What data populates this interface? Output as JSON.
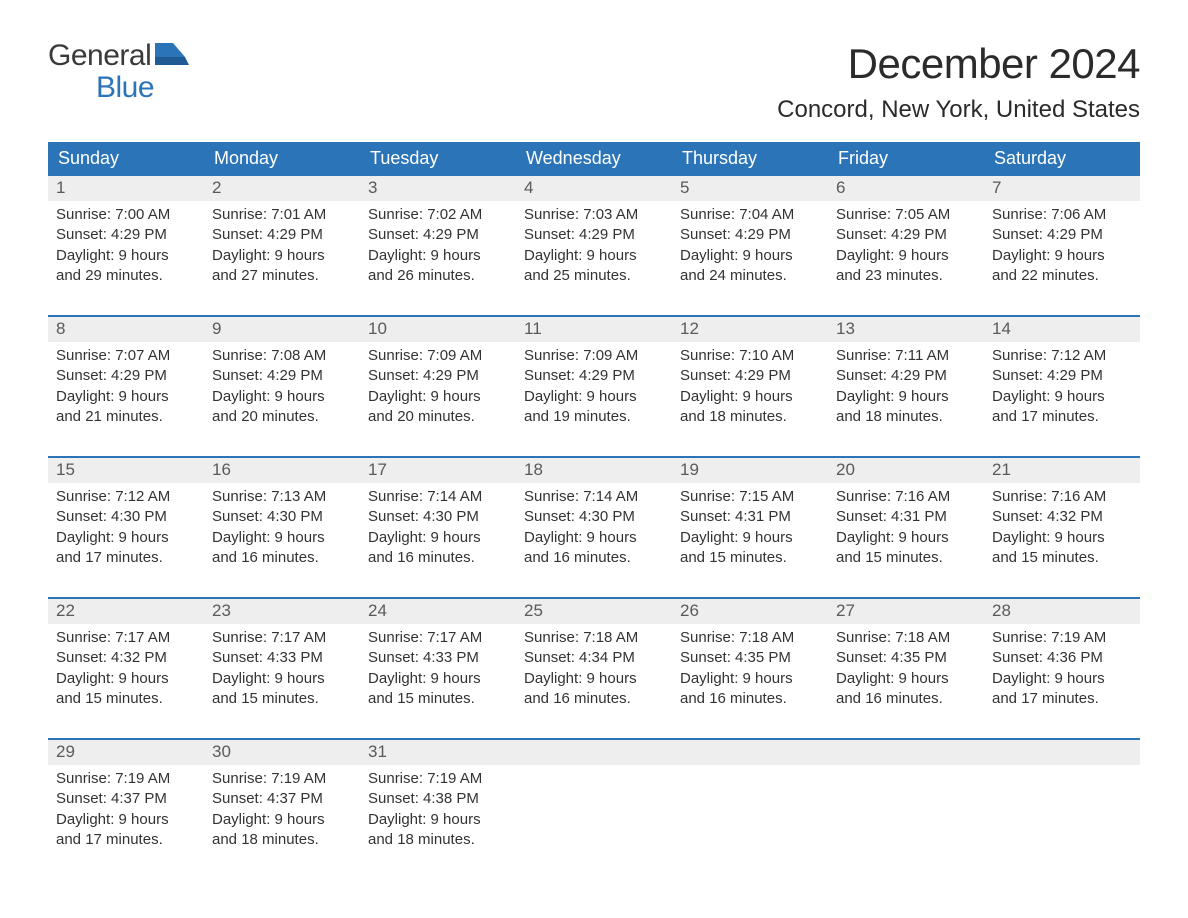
{
  "logo": {
    "top": "General",
    "bottom": "Blue"
  },
  "title": "December 2024",
  "location": "Concord, New York, United States",
  "colors": {
    "accent": "#2b74b8",
    "header_text": "#ffffff",
    "daynum_bg": "#eeeeee",
    "body_text": "#333333",
    "page_bg": "#ffffff"
  },
  "typography": {
    "title_fontsize": 42,
    "location_fontsize": 24,
    "dayheader_fontsize": 18,
    "cell_fontsize": 15,
    "logo_fontsize": 30
  },
  "layout": {
    "columns": 7
  },
  "day_names": [
    "Sunday",
    "Monday",
    "Tuesday",
    "Wednesday",
    "Thursday",
    "Friday",
    "Saturday"
  ],
  "weeks": [
    [
      {
        "n": "1",
        "sunrise": "7:00 AM",
        "sunset": "4:29 PM",
        "dl1": "9 hours",
        "dl2": "and 29 minutes."
      },
      {
        "n": "2",
        "sunrise": "7:01 AM",
        "sunset": "4:29 PM",
        "dl1": "9 hours",
        "dl2": "and 27 minutes."
      },
      {
        "n": "3",
        "sunrise": "7:02 AM",
        "sunset": "4:29 PM",
        "dl1": "9 hours",
        "dl2": "and 26 minutes."
      },
      {
        "n": "4",
        "sunrise": "7:03 AM",
        "sunset": "4:29 PM",
        "dl1": "9 hours",
        "dl2": "and 25 minutes."
      },
      {
        "n": "5",
        "sunrise": "7:04 AM",
        "sunset": "4:29 PM",
        "dl1": "9 hours",
        "dl2": "and 24 minutes."
      },
      {
        "n": "6",
        "sunrise": "7:05 AM",
        "sunset": "4:29 PM",
        "dl1": "9 hours",
        "dl2": "and 23 minutes."
      },
      {
        "n": "7",
        "sunrise": "7:06 AM",
        "sunset": "4:29 PM",
        "dl1": "9 hours",
        "dl2": "and 22 minutes."
      }
    ],
    [
      {
        "n": "8",
        "sunrise": "7:07 AM",
        "sunset": "4:29 PM",
        "dl1": "9 hours",
        "dl2": "and 21 minutes."
      },
      {
        "n": "9",
        "sunrise": "7:08 AM",
        "sunset": "4:29 PM",
        "dl1": "9 hours",
        "dl2": "and 20 minutes."
      },
      {
        "n": "10",
        "sunrise": "7:09 AM",
        "sunset": "4:29 PM",
        "dl1": "9 hours",
        "dl2": "and 20 minutes."
      },
      {
        "n": "11",
        "sunrise": "7:09 AM",
        "sunset": "4:29 PM",
        "dl1": "9 hours",
        "dl2": "and 19 minutes."
      },
      {
        "n": "12",
        "sunrise": "7:10 AM",
        "sunset": "4:29 PM",
        "dl1": "9 hours",
        "dl2": "and 18 minutes."
      },
      {
        "n": "13",
        "sunrise": "7:11 AM",
        "sunset": "4:29 PM",
        "dl1": "9 hours",
        "dl2": "and 18 minutes."
      },
      {
        "n": "14",
        "sunrise": "7:12 AM",
        "sunset": "4:29 PM",
        "dl1": "9 hours",
        "dl2": "and 17 minutes."
      }
    ],
    [
      {
        "n": "15",
        "sunrise": "7:12 AM",
        "sunset": "4:30 PM",
        "dl1": "9 hours",
        "dl2": "and 17 minutes."
      },
      {
        "n": "16",
        "sunrise": "7:13 AM",
        "sunset": "4:30 PM",
        "dl1": "9 hours",
        "dl2": "and 16 minutes."
      },
      {
        "n": "17",
        "sunrise": "7:14 AM",
        "sunset": "4:30 PM",
        "dl1": "9 hours",
        "dl2": "and 16 minutes."
      },
      {
        "n": "18",
        "sunrise": "7:14 AM",
        "sunset": "4:30 PM",
        "dl1": "9 hours",
        "dl2": "and 16 minutes."
      },
      {
        "n": "19",
        "sunrise": "7:15 AM",
        "sunset": "4:31 PM",
        "dl1": "9 hours",
        "dl2": "and 15 minutes."
      },
      {
        "n": "20",
        "sunrise": "7:16 AM",
        "sunset": "4:31 PM",
        "dl1": "9 hours",
        "dl2": "and 15 minutes."
      },
      {
        "n": "21",
        "sunrise": "7:16 AM",
        "sunset": "4:32 PM",
        "dl1": "9 hours",
        "dl2": "and 15 minutes."
      }
    ],
    [
      {
        "n": "22",
        "sunrise": "7:17 AM",
        "sunset": "4:32 PM",
        "dl1": "9 hours",
        "dl2": "and 15 minutes."
      },
      {
        "n": "23",
        "sunrise": "7:17 AM",
        "sunset": "4:33 PM",
        "dl1": "9 hours",
        "dl2": "and 15 minutes."
      },
      {
        "n": "24",
        "sunrise": "7:17 AM",
        "sunset": "4:33 PM",
        "dl1": "9 hours",
        "dl2": "and 15 minutes."
      },
      {
        "n": "25",
        "sunrise": "7:18 AM",
        "sunset": "4:34 PM",
        "dl1": "9 hours",
        "dl2": "and 16 minutes."
      },
      {
        "n": "26",
        "sunrise": "7:18 AM",
        "sunset": "4:35 PM",
        "dl1": "9 hours",
        "dl2": "and 16 minutes."
      },
      {
        "n": "27",
        "sunrise": "7:18 AM",
        "sunset": "4:35 PM",
        "dl1": "9 hours",
        "dl2": "and 16 minutes."
      },
      {
        "n": "28",
        "sunrise": "7:19 AM",
        "sunset": "4:36 PM",
        "dl1": "9 hours",
        "dl2": "and 17 minutes."
      }
    ],
    [
      {
        "n": "29",
        "sunrise": "7:19 AM",
        "sunset": "4:37 PM",
        "dl1": "9 hours",
        "dl2": "and 17 minutes."
      },
      {
        "n": "30",
        "sunrise": "7:19 AM",
        "sunset": "4:37 PM",
        "dl1": "9 hours",
        "dl2": "and 18 minutes."
      },
      {
        "n": "31",
        "sunrise": "7:19 AM",
        "sunset": "4:38 PM",
        "dl1": "9 hours",
        "dl2": "and 18 minutes."
      }
    ]
  ],
  "labels": {
    "sunrise": "Sunrise: ",
    "sunset": "Sunset: ",
    "daylight": "Daylight: "
  }
}
